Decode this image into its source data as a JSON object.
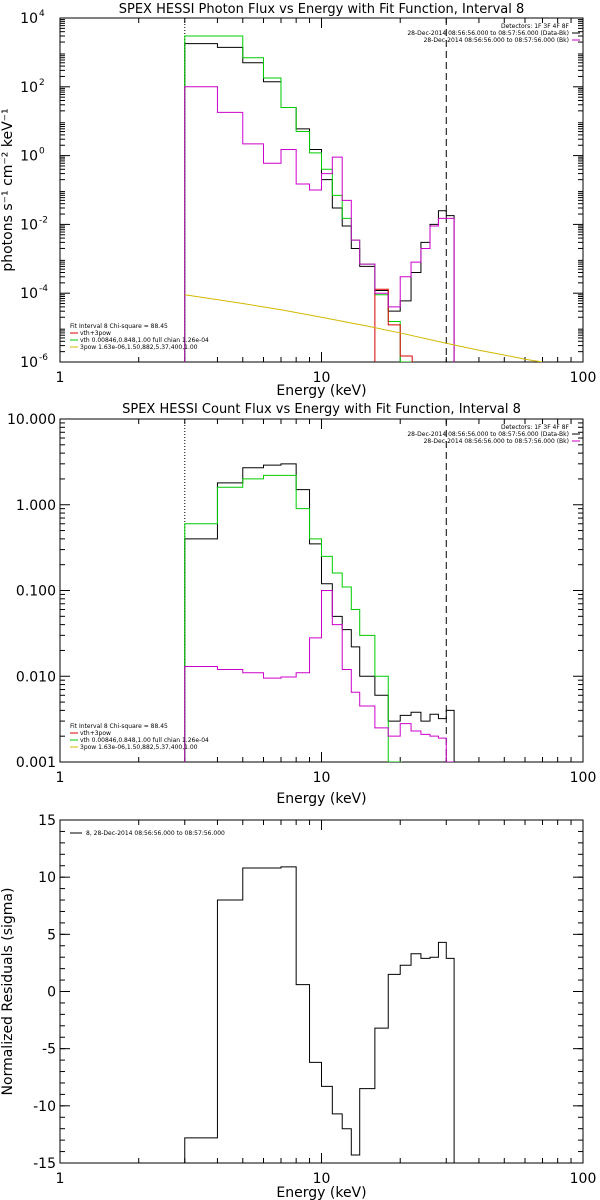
{
  "colors": {
    "black": "#000000",
    "magenta": "#cc00cc",
    "green": "#00cc00",
    "red": "#dd0000",
    "yellow": "#d4b800"
  },
  "chart_data": [
    {
      "type": "line",
      "title": "SPEX HESSI Photon Flux vs Energy with Fit Function, Interval 8",
      "xlabel": "Energy (keV)",
      "ylabel": "photons s⁻¹ cm⁻² keV⁻¹",
      "xscale": "log",
      "yscale": "log",
      "xlim": [
        1,
        100
      ],
      "ylim": [
        1e-06,
        10000.0
      ],
      "x_ticks": [
        {
          "value": 1,
          "label": "1"
        },
        {
          "value": 10,
          "label": "10"
        },
        {
          "value": 100,
          "label": "100"
        }
      ],
      "y_ticks": [
        {
          "value": 1e-06,
          "base": "10",
          "exp": "-6"
        },
        {
          "value": 0.0001,
          "base": "10",
          "exp": "-4"
        },
        {
          "value": 0.01,
          "base": "10",
          "exp": "-2"
        },
        {
          "value": 1,
          "base": "10",
          "exp": "0"
        },
        {
          "value": 100,
          "base": "10",
          "exp": "2"
        },
        {
          "value": 10000,
          "base": "10",
          "exp": "4"
        }
      ],
      "vlines": [
        {
          "x": 3,
          "style": "dotted"
        },
        {
          "x": 30,
          "style": "dashed"
        }
      ],
      "legend_topright": {
        "position": "top-right",
        "lines": [
          {
            "text": "Detectors: 1F 3F 4F 8F",
            "color": "",
            "sample": false
          },
          {
            "text": "28-Dec-2014 08:56:56.000 to 08:57:56.000 (Data-Bk)",
            "color": "#000000",
            "sample": true
          },
          {
            "text": "28-Dec-2014 08:56:56.000 to 08:57:56.000 (Bk)",
            "color": "#cc00cc",
            "sample": true
          }
        ]
      },
      "legend_bottomleft": {
        "position": "bottom-left",
        "lines": [
          {
            "text": "Fit Interval 8    Chi-square = 88.45",
            "color": "",
            "sample": false
          },
          {
            "text": "vth+3pow",
            "color": "#dd0000",
            "sample": true
          },
          {
            "text": "vth 0.00846,0.848,1.00   full chian 1.26e-04",
            "color": "#00cc00",
            "sample": true
          },
          {
            "text": "3pow 1.63e-06,1.50,882,5.37,400,1.00",
            "color": "#d4b800",
            "sample": true
          }
        ]
      },
      "series": [
        {
          "color": "#000000",
          "step": true,
          "x": [
            3,
            4,
            5,
            6,
            7,
            8,
            9,
            10,
            11,
            12,
            13,
            14,
            16,
            18,
            20,
            22,
            24,
            26,
            28,
            30
          ],
          "y": [
            1800,
            1400,
            500,
            140,
            25,
            6,
            1.5,
            0.2,
            0.03,
            0.009,
            0.002,
            0.0006,
            0.00012,
            3e-05,
            6e-05,
            0.0004,
            0.003,
            0.01,
            0.025,
            0.018
          ]
        },
        {
          "color": "#00cc00",
          "step": true,
          "x": [
            3,
            4,
            5,
            6,
            7,
            8,
            9,
            10,
            11,
            12,
            13,
            14,
            16,
            18,
            20
          ],
          "y": [
            3000,
            3000,
            700,
            180,
            25,
            5,
            1.2,
            0.4,
            0.07,
            0.015,
            0.0035,
            0.0007,
            9e-05,
            1.5e-05,
            1e-06
          ]
        },
        {
          "color": "#dd0000",
          "step": true,
          "x": [
            16,
            18,
            20
          ],
          "y": [
            0.00013,
            1.2e-05,
            1.5e-06
          ]
        },
        {
          "color": "#cc00cc",
          "step": true,
          "x": [
            3,
            4,
            5,
            6,
            7,
            8,
            9,
            10,
            11,
            12,
            13,
            14,
            16,
            18,
            20,
            22,
            24,
            26,
            28,
            30
          ],
          "y": [
            100,
            18,
            2.2,
            0.6,
            1.5,
            0.15,
            0.1,
            0.3,
            0.9,
            0.05,
            0.0035,
            0.0007,
            0.0001,
            4e-05,
            0.0003,
            0.0008,
            0.002,
            0.009,
            0.015,
            0.015
          ]
        },
        {
          "color": "#d4b800",
          "step": false,
          "x": [
            3,
            5,
            7,
            10,
            15,
            20,
            30,
            40,
            50,
            60,
            70
          ],
          "y": [
            9e-05,
            5e-05,
            3.3e-05,
            2e-05,
            1.1e-05,
            7e-06,
            3.5e-06,
            2.2e-06,
            1.6e-06,
            1.2e-06,
            9e-07
          ]
        }
      ]
    },
    {
      "type": "line",
      "title": "SPEX HESSI Count Flux vs Energy with Fit Function, Interval 8",
      "xlabel": "Energy (keV)",
      "ylabel": "",
      "xscale": "log",
      "yscale": "log",
      "xlim": [
        1,
        100
      ],
      "ylim": [
        0.001,
        10
      ],
      "x_ticks": [
        {
          "value": 1,
          "label": "1"
        },
        {
          "value": 10,
          "label": "10"
        },
        {
          "value": 100,
          "label": "100"
        }
      ],
      "y_ticks": [
        {
          "value": 0.001,
          "label": "0.001"
        },
        {
          "value": 0.01,
          "label": "0.010"
        },
        {
          "value": 0.1,
          "label": "0.100"
        },
        {
          "value": 1,
          "label": "1.000"
        },
        {
          "value": 10,
          "label": "10.000"
        }
      ],
      "vlines": [
        {
          "x": 3,
          "style": "dotted"
        },
        {
          "x": 30,
          "style": "dashed"
        }
      ],
      "legend_topright": {
        "position": "top-right",
        "lines": [
          {
            "text": "Detectors: 1F 3F 4F 8F",
            "color": "",
            "sample": false
          },
          {
            "text": "28-Dec-2014 08:56:56.000 to 08:57:56.000 (Data-Bk)",
            "color": "#000000",
            "sample": true
          },
          {
            "text": "28-Dec-2014 08:56:56.000 to 08:57:56.000 (Bk)",
            "color": "#cc00cc",
            "sample": true
          }
        ]
      },
      "legend_bottomleft": {
        "position": "bottom-left",
        "lines": [
          {
            "text": "Fit Interval 8    Chi-square = 88.45",
            "color": "",
            "sample": false
          },
          {
            "text": "vth+3pow",
            "color": "#dd0000",
            "sample": true
          },
          {
            "text": "vth 0.00846,0.848,1.00   full chian 1.26e-04",
            "color": "#00cc00",
            "sample": true
          },
          {
            "text": "3pow 1.63e-06,1.50,882,5.37,400,1.00",
            "color": "#d4b800",
            "sample": true
          }
        ]
      },
      "series": [
        {
          "color": "#000000",
          "step": true,
          "x": [
            3,
            4,
            5,
            6,
            7,
            8,
            9,
            10,
            11,
            12,
            13,
            14,
            16,
            18,
            20,
            22,
            24,
            26,
            28,
            30
          ],
          "y": [
            0.4,
            1.8,
            2.7,
            2.9,
            3.0,
            1.5,
            0.35,
            0.12,
            0.05,
            0.035,
            0.022,
            0.01,
            0.006,
            0.003,
            0.0035,
            0.0038,
            0.003,
            0.0036,
            0.0032,
            0.004
          ]
        },
        {
          "color": "#00cc00",
          "step": true,
          "x": [
            3,
            4,
            5,
            6,
            7,
            8,
            9,
            10,
            11,
            12,
            13,
            14,
            16,
            18
          ],
          "y": [
            0.6,
            1.6,
            2.0,
            2.2,
            2.2,
            0.9,
            0.4,
            0.25,
            0.16,
            0.11,
            0.06,
            0.03,
            0.01,
            0.001
          ]
        },
        {
          "color": "#cc00cc",
          "step": true,
          "x": [
            3,
            4,
            5,
            6,
            7,
            8,
            9,
            10,
            11,
            12,
            13,
            14,
            16,
            18,
            20,
            22,
            24,
            26,
            28,
            30
          ],
          "y": [
            0.013,
            0.012,
            0.011,
            0.0095,
            0.0098,
            0.011,
            0.028,
            0.1,
            0.04,
            0.012,
            0.0065,
            0.0045,
            0.0025,
            0.002,
            0.0028,
            0.0023,
            0.0021,
            0.002,
            0.0019,
            0.001
          ]
        }
      ]
    },
    {
      "type": "line",
      "title": "",
      "xlabel": "Energy (keV)",
      "ylabel": "Normalized Residuals (sigma)",
      "xscale": "log",
      "yscale": "linear",
      "xlim": [
        1,
        100
      ],
      "ylim": [
        -15,
        15
      ],
      "x_ticks": [
        {
          "value": 1,
          "label": "1"
        },
        {
          "value": 10,
          "label": "10"
        },
        {
          "value": 100,
          "label": "100"
        }
      ],
      "y_ticks": [
        {
          "value": -15,
          "label": "-15"
        },
        {
          "value": -10,
          "label": "-10"
        },
        {
          "value": -5,
          "label": "-5"
        },
        {
          "value": 0,
          "label": "0"
        },
        {
          "value": 5,
          "label": "5"
        },
        {
          "value": 10,
          "label": "10"
        },
        {
          "value": 15,
          "label": "15"
        }
      ],
      "vlines": [],
      "legend_topleft": {
        "position": "top-left",
        "lines": [
          {
            "text": "8, 28-Dec-2014 08:56:56.000 to 08:57:56.000",
            "color": "#000000",
            "sample": true
          }
        ]
      },
      "series": [
        {
          "color": "#000000",
          "step": true,
          "x": [
            3,
            4,
            5,
            6,
            7,
            8,
            9,
            10,
            11,
            12,
            13,
            14,
            16,
            18,
            20,
            22,
            24,
            26,
            28,
            30
          ],
          "y": [
            -12.8,
            8.0,
            10.8,
            10.8,
            10.9,
            0.6,
            -6.2,
            -8.3,
            -10.7,
            -12.0,
            -14.3,
            -8.5,
            -3.2,
            1.5,
            2.3,
            3.3,
            2.9,
            3.0,
            4.3,
            2.9
          ]
        }
      ]
    }
  ]
}
